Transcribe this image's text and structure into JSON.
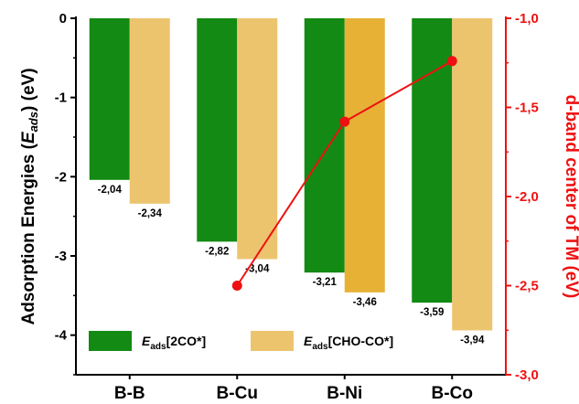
{
  "chart_data": {
    "type": "bar",
    "categories": [
      "B-B",
      "B-Cu",
      "B-Ni",
      "B-Co"
    ],
    "series": [
      {
        "name": "E_ads[2CO*]",
        "legend_main": "E",
        "legend_sub": "ads",
        "legend_rest": "[2CO*]",
        "color": "#138a13",
        "values": [
          -2.04,
          -2.82,
          -3.21,
          -3.59
        ],
        "labels": [
          "-2,04",
          "-2,82",
          "-3,21",
          "-3,59"
        ]
      },
      {
        "name": "E_ads[CHO-CO*]",
        "legend_main": "E",
        "legend_sub": "ads",
        "legend_rest": "[CHO-CO*]",
        "color": "#edc46e",
        "highlight_color": "#e6b135",
        "values": [
          -2.34,
          -3.04,
          -3.46,
          -3.94
        ],
        "labels": [
          "-2,34",
          "-3,04",
          "-3,46",
          "-3,94"
        ]
      }
    ],
    "line_series": {
      "name": "d-band center of TM",
      "color": "#ee1111",
      "x_categories": [
        "B-Cu",
        "B-Ni",
        "B-Co"
      ],
      "values": [
        -2.5,
        -1.58,
        -1.24
      ]
    },
    "left_axis": {
      "label_prefix": "Adsorption Energies (",
      "label_main": "E",
      "label_sub": "ads",
      "label_suffix": ") (eV)",
      "ylim": [
        -4.5,
        0
      ],
      "ticks": [
        0,
        -1,
        -2,
        -3,
        -4
      ],
      "tick_labels": [
        "0",
        "-1",
        "-2",
        "-3",
        "-4"
      ]
    },
    "right_axis": {
      "label": "d-band center of TM (eV)",
      "ylim": [
        -3.0,
        -1.0
      ],
      "ticks": [
        -1.0,
        -1.5,
        -2.0,
        -2.5,
        -3.0
      ],
      "tick_labels": [
        "-1,0",
        "-1,5",
        "-2,0",
        "-2,5",
        "-3,0"
      ],
      "color": "#ee1111"
    },
    "legend_position": "bottom-left",
    "grid": false
  }
}
